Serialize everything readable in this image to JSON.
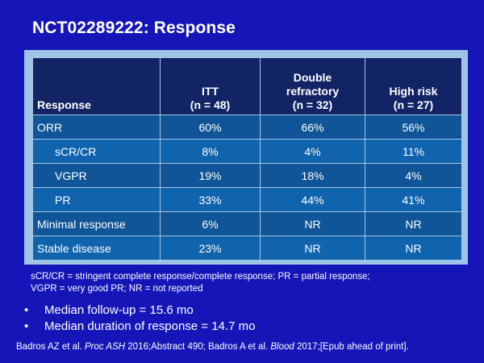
{
  "slide": {
    "title": "NCT02289222: Response"
  },
  "table": {
    "headers": {
      "response": "Response",
      "itt": [
        "ITT",
        "(n = 48)"
      ],
      "double_refractory": [
        "Double",
        "refractory",
        "(n = 32)"
      ],
      "high_risk": [
        "High risk",
        "(n = 27)"
      ]
    },
    "rows": [
      {
        "label": "ORR",
        "itt": "60%",
        "double_refractory": "66%",
        "high_risk": "56%"
      },
      {
        "label": "sCR/CR",
        "itt": "8%",
        "double_refractory": "4%",
        "high_risk": "11%"
      },
      {
        "label": "VGPR",
        "itt": "19%",
        "double_refractory": "18%",
        "high_risk": "4%"
      },
      {
        "label": "PR",
        "itt": "33%",
        "double_refractory": "44%",
        "high_risk": "41%"
      },
      {
        "label": "Minimal response",
        "itt": "6%",
        "double_refractory": "NR",
        "high_risk": "NR"
      },
      {
        "label": "Stable disease",
        "itt": "23%",
        "double_refractory": "NR",
        "high_risk": "NR"
      }
    ]
  },
  "footnote": {
    "line1": "sCR/CR = stringent complete response/complete response; PR = partial response;",
    "line2": "VGPR = very good PR; NR = not reported"
  },
  "bullets": {
    "marker": "•",
    "items": [
      "Median follow-up = 15.6 mo",
      "Median duration of response = 14.7 mo"
    ]
  },
  "citation": {
    "part1": "Badros AZ et al. ",
    "journal1": "Proc ASH",
    "part2": " 2016;Abstract 490; Badros A et al. ",
    "journal2": "Blood",
    "part3": " 2017;[Epub ahead of print]."
  },
  "colors": {
    "background": "#1616b8",
    "table_frame": "#9dc3e6",
    "header_fill": "#122465",
    "row_fill_dark": "#0f5597",
    "row_fill_light": "#1063ad",
    "text": "#ffffff"
  }
}
